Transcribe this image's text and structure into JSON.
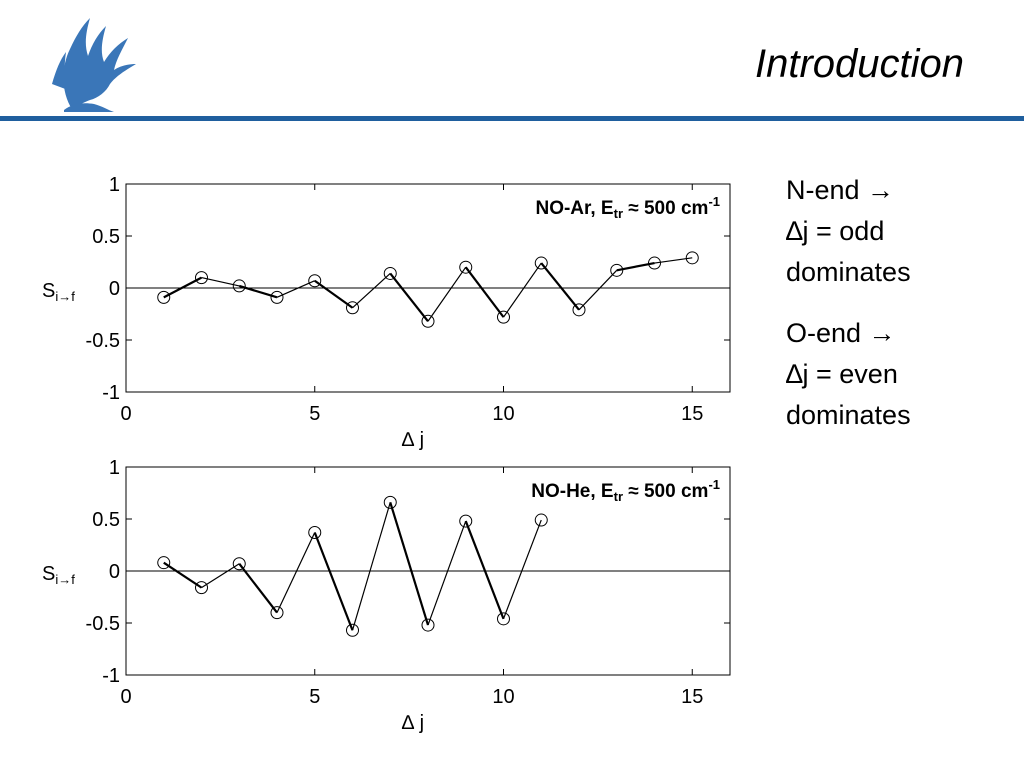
{
  "header": {
    "title": "Introduction",
    "logo_icon": "griffin-logo-icon",
    "accent_color": "#1f5f9e"
  },
  "side_notes": [
    {
      "line1": "N-end →",
      "line2": "∆j = odd",
      "line3": "dominates"
    },
    {
      "line1": "O-end →",
      "line2": "∆j = even",
      "line3": "dominates"
    }
  ],
  "chart_data": [
    {
      "type": "line",
      "annotation_main": "NO-Ar, E",
      "annotation_sub": "tr",
      "annotation_rest": " ≈ 500 cm",
      "annotation_sup": "-1",
      "xlabel": "∆ j",
      "ylabel_main": "S",
      "ylabel_sub": "i→f",
      "xlim": [
        0,
        16
      ],
      "ylim": [
        -1,
        1
      ],
      "xticks": [
        0,
        5,
        10,
        15
      ],
      "yticks": [
        1,
        0.5,
        0,
        -0.5,
        -1
      ],
      "xtick_labels": [
        "0",
        "5",
        "10",
        "15"
      ],
      "ytick_labels": [
        "1",
        "0.5",
        "0",
        "-0.5",
        "-1"
      ],
      "series": [
        {
          "x": [
            1,
            2,
            3,
            4,
            5,
            6,
            7,
            8,
            9,
            10,
            11,
            12,
            13,
            14,
            15
          ],
          "values": [
            -0.09,
            0.1,
            0.02,
            -0.09,
            0.07,
            -0.19,
            0.14,
            -0.32,
            0.2,
            -0.28,
            0.24,
            -0.21,
            0.17,
            0.24,
            0.29
          ]
        }
      ]
    },
    {
      "type": "line",
      "annotation_main": "NO-He, E",
      "annotation_sub": "tr",
      "annotation_rest": " ≈ 500 cm",
      "annotation_sup": "-1",
      "xlabel": "∆ j",
      "ylabel_main": "S",
      "ylabel_sub": "i→f",
      "xlim": [
        0,
        16
      ],
      "ylim": [
        -1,
        1
      ],
      "xticks": [
        0,
        5,
        10,
        15
      ],
      "yticks": [
        1,
        0.5,
        0,
        -0.5,
        -1
      ],
      "xtick_labels": [
        "0",
        "5",
        "10",
        "15"
      ],
      "ytick_labels": [
        "1",
        "0.5",
        "0",
        "-0.5",
        "-1"
      ],
      "series": [
        {
          "x": [
            1,
            2,
            3,
            4,
            5,
            6,
            7,
            8,
            9,
            10,
            11
          ],
          "values": [
            0.08,
            -0.16,
            0.07,
            -0.4,
            0.37,
            -0.57,
            0.66,
            -0.52,
            0.48,
            -0.46,
            0.49
          ]
        }
      ]
    }
  ]
}
